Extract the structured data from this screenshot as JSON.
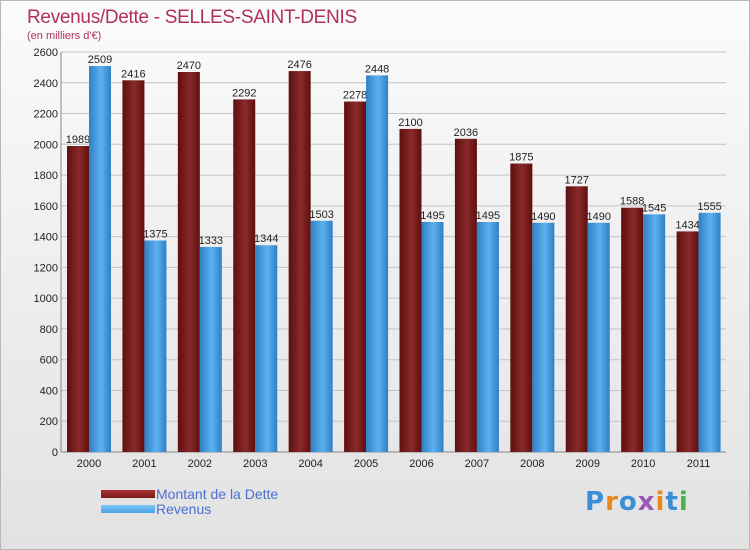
{
  "header": {
    "title": "Revenus/Dette - SELLES-SAINT-DENIS",
    "subtitle": "(en milliers d'€)"
  },
  "logo": {
    "text": "Proxiti",
    "letter_colors": [
      "#3a8fd8",
      "#e8871e",
      "#3a8fd8",
      "#9b59b6",
      "#e8871e",
      "#3a8fd8",
      "#4caf50"
    ]
  },
  "chart_data": {
    "type": "bar",
    "categories": [
      "2000",
      "2001",
      "2002",
      "2003",
      "2004",
      "2005",
      "2006",
      "2007",
      "2008",
      "2009",
      "2010",
      "2011"
    ],
    "series": [
      {
        "name": "Montant de la Dette",
        "color": "#7a1c1c",
        "values": [
          1989,
          2416,
          2470,
          2292,
          2476,
          2278,
          2100,
          2036,
          1875,
          1727,
          1588,
          1434
        ]
      },
      {
        "name": "Revenus",
        "color": "#4aa3e8",
        "values": [
          2509,
          1375,
          1333,
          1344,
          1503,
          2448,
          1495,
          1495,
          1490,
          1490,
          1545,
          1555
        ]
      }
    ],
    "yticks": [
      0,
      200,
      400,
      600,
      800,
      1000,
      1200,
      1400,
      1600,
      1800,
      2000,
      2200,
      2400,
      2600
    ],
    "ylim": [
      0,
      2600
    ],
    "grid": true,
    "legend_position": "bottom-left"
  }
}
